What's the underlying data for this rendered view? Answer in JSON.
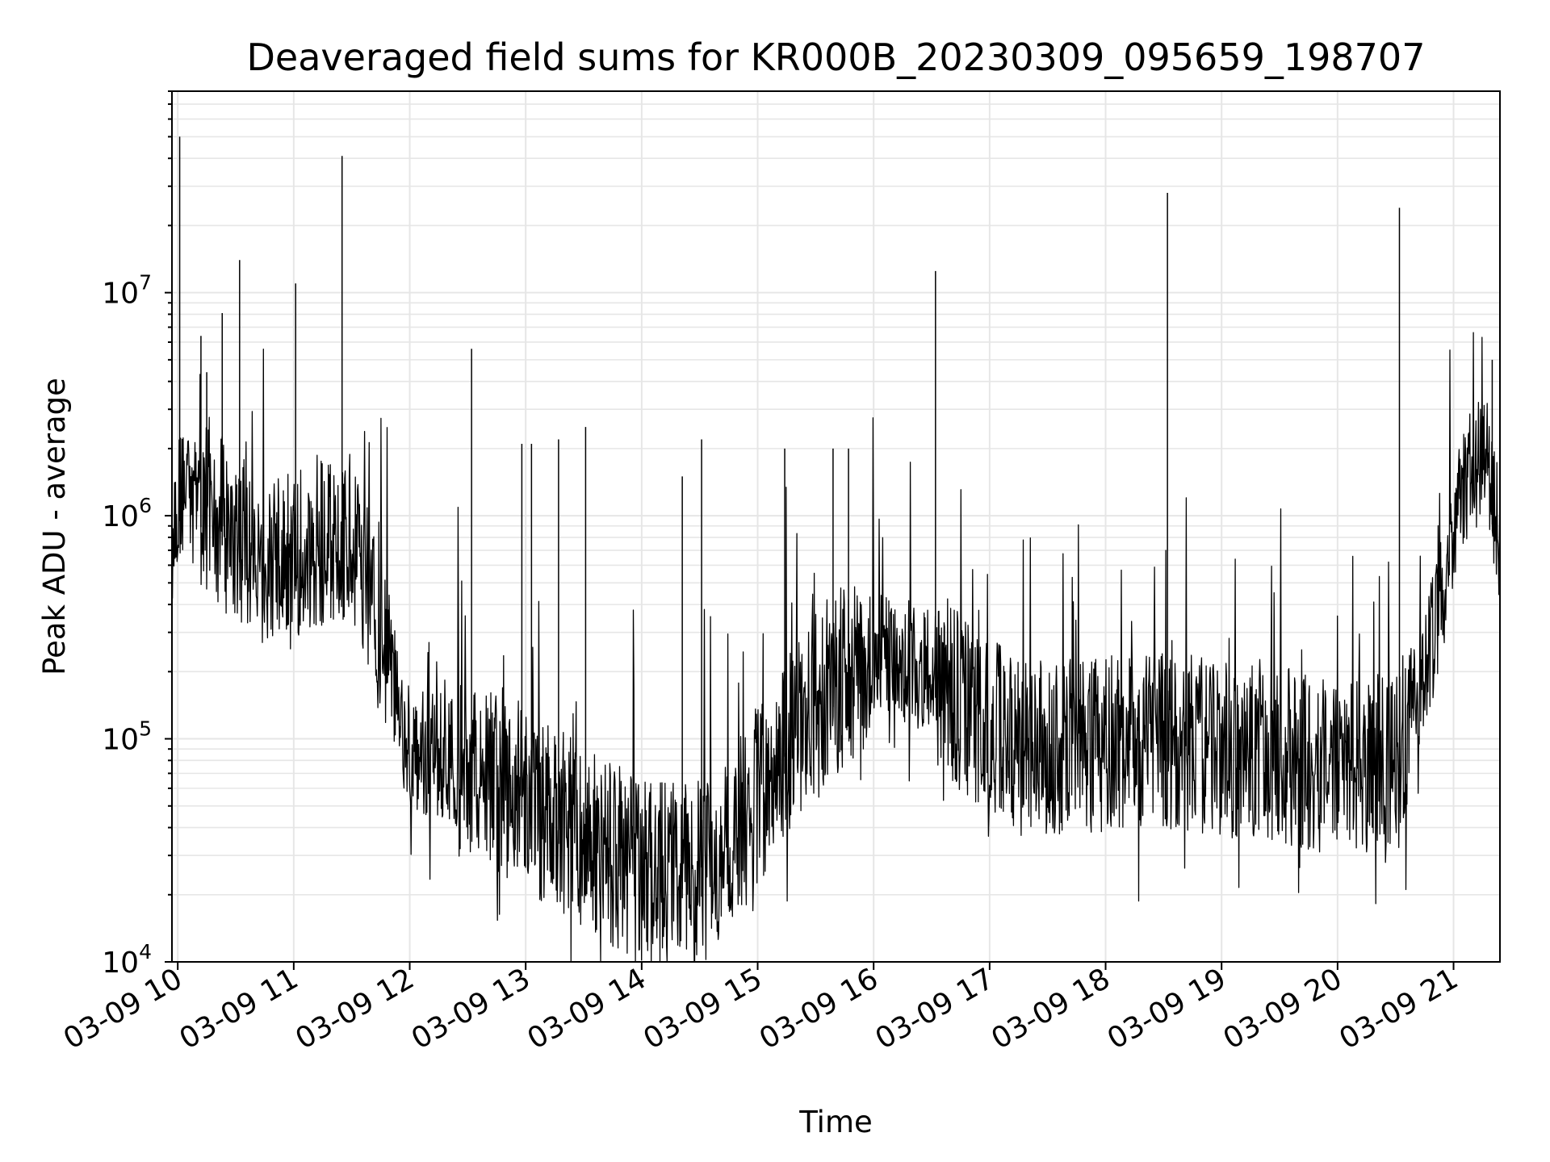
{
  "chart_data": {
    "type": "line",
    "title": "Deaveraged field sums for KR000B_20230309_095659_198707",
    "xlabel": "Time",
    "ylabel": "Peak ADU - average",
    "yscale": "log",
    "ylim": [
      10000,
      80000000
    ],
    "xlim": [
      "03-09 09:57",
      "03-09 21:24"
    ],
    "grid": true,
    "line_color": "#000000",
    "grid_color": "#e6e6e6",
    "x_ticks": [
      "03-09 10",
      "03-09 11",
      "03-09 12",
      "03-09 13",
      "03-09 14",
      "03-09 15",
      "03-09 16",
      "03-09 17",
      "03-09 18",
      "03-09 19",
      "03-09 20",
      "03-09 21"
    ],
    "y_ticks": [
      {
        "value": 10000,
        "base": "10",
        "exp": "4"
      },
      {
        "value": 100000,
        "base": "10",
        "exp": "5"
      },
      {
        "value": 1000000,
        "base": "10",
        "exp": "6"
      },
      {
        "value": 10000000,
        "base": "10",
        "exp": "7"
      }
    ],
    "series": [
      {
        "points": [
          [
            "03-09 09:57",
            600000
          ],
          [
            "03-09 10:00",
            1200000
          ],
          [
            "03-09 10:15",
            1100000
          ],
          [
            "03-09 10:30",
            800000
          ],
          [
            "03-09 10:45",
            650000
          ],
          [
            "03-09 11:00",
            600000
          ],
          [
            "03-09 11:15",
            750000
          ],
          [
            "03-09 11:30",
            800000
          ],
          [
            "03-09 11:45",
            300000
          ],
          [
            "03-09 12:00",
            90000
          ],
          [
            "03-09 12:30",
            75000
          ],
          [
            "03-09 13:00",
            55000
          ],
          [
            "03-09 13:30",
            35000
          ],
          [
            "03-09 14:00",
            25000
          ],
          [
            "03-09 14:30",
            24000
          ],
          [
            "03-09 15:00",
            55000
          ],
          [
            "03-09 15:30",
            150000
          ],
          [
            "03-09 16:00",
            250000
          ],
          [
            "03-09 16:30",
            200000
          ],
          [
            "03-09 17:00",
            110000
          ],
          [
            "03-09 17:30",
            90000
          ],
          [
            "03-09 18:00",
            95000
          ],
          [
            "03-09 18:30",
            100000
          ],
          [
            "03-09 19:00",
            90000
          ],
          [
            "03-09 19:30",
            85000
          ],
          [
            "03-09 20:00",
            75000
          ],
          [
            "03-09 20:30",
            80000
          ],
          [
            "03-09 20:50",
            300000
          ],
          [
            "03-09 21:05",
            1400000
          ],
          [
            "03-09 21:15",
            1800000
          ],
          [
            "03-09 21:24",
            800000
          ]
        ],
        "spikes": [
          [
            "03-09 10:01",
            50000000
          ],
          [
            "03-09 10:12",
            6400000
          ],
          [
            "03-09 10:15",
            4400000
          ],
          [
            "03-09 10:23",
            8100000
          ],
          [
            "03-09 10:32",
            14000000
          ],
          [
            "03-09 11:01",
            11000000
          ],
          [
            "03-09 11:25",
            41000000
          ],
          [
            "03-09 12:32",
            5600000
          ],
          [
            "03-09 12:58",
            2100000
          ],
          [
            "03-09 13:03",
            2100000
          ],
          [
            "03-09 13:17",
            2200000
          ],
          [
            "03-09 13:31",
            2500000
          ],
          [
            "03-09 14:21",
            1500000
          ],
          [
            "03-09 14:31",
            2200000
          ],
          [
            "03-09 15:14",
            2000000
          ],
          [
            "03-09 15:39",
            2000000
          ],
          [
            "03-09 15:47",
            2000000
          ],
          [
            "03-09 16:32",
            12500000
          ],
          [
            "03-09 18:32",
            28000000
          ],
          [
            "03-09 20:32",
            24000000
          ],
          [
            "03-09 21:20",
            5000000
          ]
        ]
      }
    ]
  }
}
